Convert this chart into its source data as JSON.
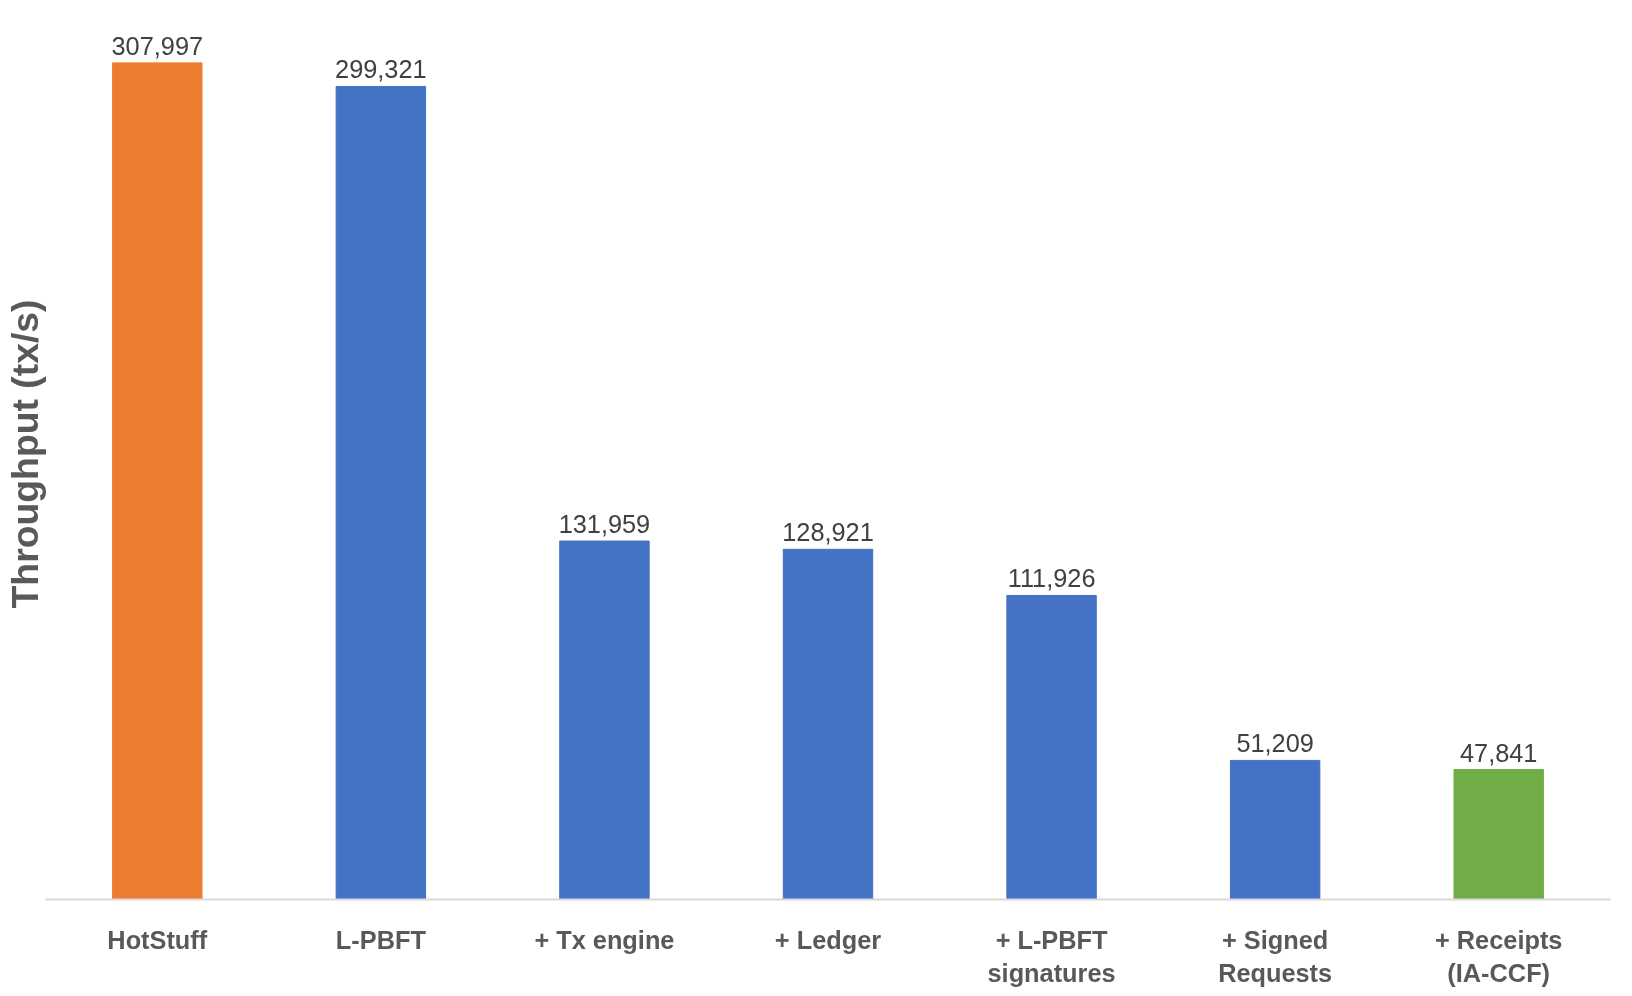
{
  "chart_data": {
    "type": "bar",
    "ylabel": "Throughput (tx/s)",
    "categories": [
      "HotStuff",
      "L-PBFT",
      "+ Tx engine",
      "+ Ledger",
      "+ L-PBFT\nsignatures",
      "+ Signed\nRequests",
      "+ Receipts\n(IA-CCF)"
    ],
    "values": [
      307997,
      299321,
      131959,
      128921,
      111926,
      51209,
      47841
    ],
    "colors": [
      "#ed7d31",
      "#4472c4",
      "#4472c4",
      "#4472c4",
      "#4472c4",
      "#4472c4",
      "#70ad47"
    ],
    "value_labels": [
      "307,997",
      "299,321",
      "131,959",
      "128,921",
      "111,926",
      "51,209",
      "47,841"
    ],
    "grid": false
  }
}
